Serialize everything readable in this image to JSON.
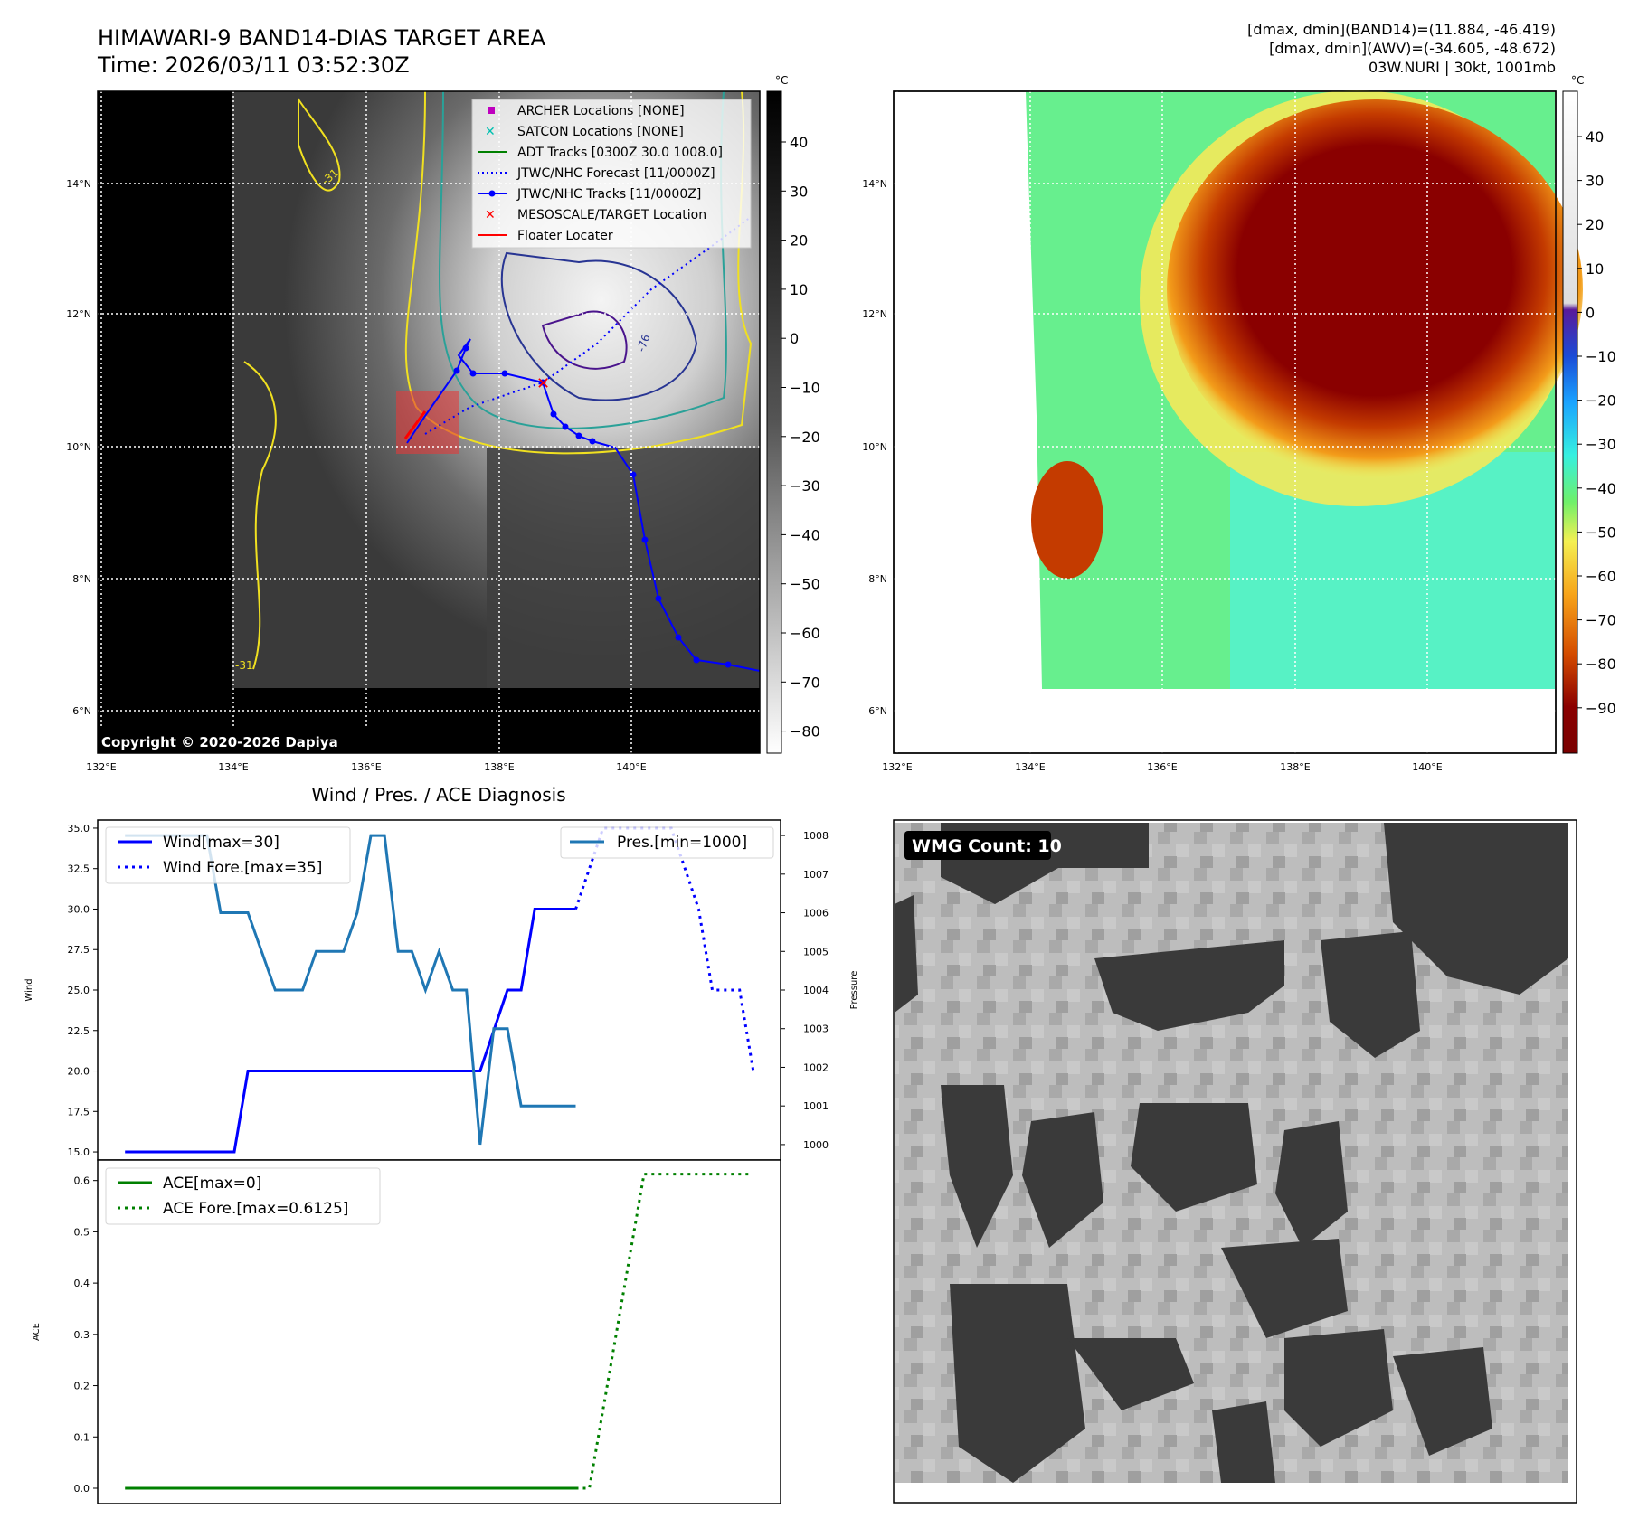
{
  "top_left": {
    "title_line1": "HIMAWARI-9 BAND14-DIAS TARGET AREA",
    "title_line2": "Time: 2026/03/11 03:52:30Z",
    "copyright": "Copyright © 2020-2026 Dapiya",
    "colorbar_unit": "°C",
    "colorbar_ticks": [
      "40",
      "30",
      "20",
      "10",
      "0",
      "−10",
      "−20",
      "−30",
      "−40",
      "−50",
      "−60",
      "−70",
      "−80"
    ],
    "lat_labels": [
      "14°N",
      "12°N",
      "10°N",
      "8°N",
      "6°N"
    ],
    "lon_labels": [
      "132°E",
      "134°E",
      "136°E",
      "138°E",
      "140°E"
    ],
    "contour_labels": [
      "-31",
      "-76",
      "-31"
    ],
    "legend": [
      {
        "label": "ARCHER Locations [NONE]",
        "color": "#bf00bf",
        "kind": "square"
      },
      {
        "label": "SATCON Locations [NONE]",
        "color": "#00c0b0",
        "kind": "x"
      },
      {
        "label": "ADT Tracks [0300Z 30.0 1008.0]",
        "color": "#008000",
        "kind": "line"
      },
      {
        "label": "JTWC/NHC Forecast [11/0000Z]",
        "color": "#0000ff",
        "kind": "dotted"
      },
      {
        "label": "JTWC/NHC Tracks [11/0000Z]",
        "color": "#0000ff",
        "kind": "line-dot"
      },
      {
        "label": "MESOSCALE/TARGET Location",
        "color": "#ff0000",
        "kind": "x"
      },
      {
        "label": "Floater Locater",
        "color": "#ff0000",
        "kind": "line"
      }
    ]
  },
  "top_right": {
    "header_line1": "[dmax, dmin](BAND14)=(11.884, -46.419)",
    "header_line2": "[dmax, dmin](AWV)=(-34.605, -48.672)",
    "header_line3": "03W.NURI | 30kt, 1001mb",
    "colorbar_unit": "°C",
    "colorbar_ticks": [
      "40",
      "30",
      "20",
      "10",
      "0",
      "−10",
      "−20",
      "−30",
      "−40",
      "−50",
      "−60",
      "−70",
      "−80",
      "−90"
    ],
    "lat_labels": [
      "14°N",
      "12°N",
      "10°N",
      "8°N",
      "6°N"
    ],
    "lon_labels": [
      "132°E",
      "134°E",
      "136°E",
      "138°E",
      "140°E"
    ]
  },
  "bottom_left": {
    "title": "Wind / Pres. / ACE Diagnosis",
    "ylabel_wind": "Wind",
    "ylabel_pressure": "Pressure",
    "ylabel_ace": "ACE",
    "wind_ticks": [
      "35.0",
      "32.5",
      "30.0",
      "27.5",
      "25.0",
      "22.5",
      "20.0",
      "17.5",
      "15.0"
    ],
    "pres_ticks": [
      "1008",
      "1007",
      "1006",
      "1005",
      "1004",
      "1003",
      "1002",
      "1001",
      "1000"
    ],
    "ace_ticks": [
      "0.6",
      "0.5",
      "0.4",
      "0.3",
      "0.2",
      "0.1",
      "0.0"
    ],
    "legend_wind": "Wind[max=30]",
    "legend_wind_fore": "Wind Fore.[max=35]",
    "legend_pres": "Pres.[min=1000]",
    "legend_ace": "ACE[max=0]",
    "legend_ace_fore": "ACE Fore.[max=0.6125]"
  },
  "bottom_right": {
    "badge": "WMG Count: 10"
  },
  "chart_data": [
    {
      "type": "line",
      "title": "Wind / Pres. / ACE Diagnosis",
      "x": [
        0,
        1,
        2,
        3,
        4,
        5,
        6,
        7,
        8,
        9,
        10,
        11,
        12,
        13,
        14,
        15,
        16,
        17,
        18,
        19,
        20,
        21,
        22,
        23,
        24,
        25,
        26,
        27,
        28,
        29,
        30,
        31,
        32,
        33,
        34,
        35,
        36,
        37,
        38,
        39,
        40
      ],
      "series": [
        {
          "name": "Wind[max=30]",
          "axis": "wind",
          "style": "solid",
          "color": "#0000ff",
          "x": [
            0,
            2,
            4,
            6,
            8,
            9,
            10,
            12,
            14,
            16,
            18,
            20,
            22,
            24,
            26,
            27,
            28,
            29,
            30,
            31,
            32,
            33
          ],
          "values": [
            15,
            15,
            15,
            15,
            15,
            20,
            20,
            20,
            20,
            20,
            20,
            20,
            20,
            20,
            20,
            22.5,
            25,
            25,
            30,
            30,
            30,
            30
          ]
        },
        {
          "name": "Wind Fore.[max=35]",
          "axis": "wind",
          "style": "dotted",
          "color": "#0000ff",
          "x": [
            33,
            35,
            37,
            39,
            40,
            41,
            42,
            43,
            44,
            45,
            46
          ],
          "values": [
            30,
            35,
            35,
            35,
            35,
            32.5,
            30,
            25,
            25,
            25,
            20
          ]
        },
        {
          "name": "Pres.[min=1000]",
          "axis": "pressure",
          "style": "solid",
          "color": "#1f77b4",
          "x": [
            0,
            2,
            5,
            6,
            7,
            8,
            9,
            10,
            11,
            12,
            13,
            14,
            15,
            16,
            17,
            18,
            19,
            20,
            21,
            22,
            23,
            24,
            25,
            26,
            27,
            28,
            29,
            30,
            31,
            32,
            33
          ],
          "values": [
            1008,
            1008,
            1008,
            1008,
            1006,
            1006,
            1006,
            1005,
            1004,
            1004,
            1004,
            1005,
            1005,
            1005,
            1006,
            1008,
            1008,
            1005,
            1005,
            1004,
            1005,
            1004,
            1004,
            1000,
            1003,
            1003,
            1001,
            1001,
            1001,
            1001,
            1001
          ]
        },
        {
          "name": "ACE[max=0]",
          "axis": "ace",
          "style": "solid",
          "color": "#008000",
          "x": [
            0,
            33
          ],
          "values": [
            0,
            0
          ]
        },
        {
          "name": "ACE Fore.[max=0.6125]",
          "axis": "ace",
          "style": "dotted",
          "color": "#008000",
          "x": [
            33,
            34,
            38,
            40,
            42,
            44,
            46
          ],
          "values": [
            0,
            0,
            0.6125,
            0.6125,
            0.6125,
            0.6125,
            0.6125
          ]
        }
      ],
      "ylim_wind": [
        14.5,
        35.5
      ],
      "ylim_pressure": [
        999.6,
        1008.4
      ],
      "ylim_ace": [
        -0.03,
        0.64
      ]
    }
  ]
}
